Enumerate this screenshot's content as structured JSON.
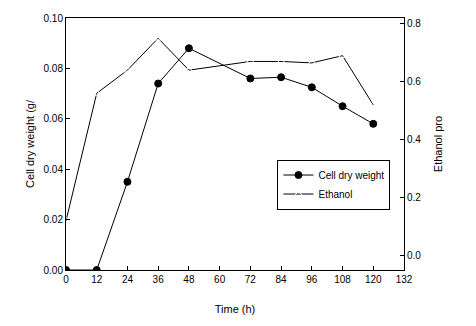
{
  "chart_data": {
    "type": "line",
    "x_label": "Time (h)",
    "y_label": "Cell dry weight (g/",
    "y2_label": "Ethanol pro",
    "x": [
      0,
      12,
      24,
      36,
      48,
      72,
      84,
      96,
      108,
      120
    ],
    "series": [
      {
        "name": "Cell dry weight",
        "color": "#000000",
        "marker": "circle",
        "line_style": "solid",
        "values": [
          0,
          0,
          0.035,
          0.074,
          0.088,
          0.076,
          0.0765,
          0.0725,
          0.065,
          0.058
        ]
      },
      {
        "name": "Ethanol",
        "color": "#000000",
        "marker": "triangle-open",
        "line_style": "solid",
        "axis": "y2",
        "values": [
          0.12,
          0.56,
          0.64,
          0.75,
          0.64,
          0.67,
          0.67,
          0.665,
          0.69,
          0.52
        ]
      }
    ],
    "xlim": [
      0,
      132
    ],
    "xticks": [
      0,
      12,
      24,
      36,
      48,
      60,
      72,
      84,
      96,
      108,
      120,
      132
    ],
    "ylim": [
      0,
      0.1
    ],
    "yticks": [
      {
        "value": 0,
        "label": "0.00"
      },
      {
        "value": 0.02,
        "label": "0.02"
      },
      {
        "value": 0.04,
        "label": "0.04"
      },
      {
        "value": 0.06,
        "label": "0.06"
      },
      {
        "value": 0.08,
        "label": "0.08"
      },
      {
        "value": 0.1,
        "label": "0.10"
      }
    ],
    "y2lim": [
      -0.05,
      0.82
    ],
    "y2ticks": [
      {
        "value": 0,
        "label": "0.0"
      },
      {
        "value": 0.2,
        "label": "0.2"
      },
      {
        "value": 0.4,
        "label": "0.4"
      },
      {
        "value": 0.6,
        "label": "0.6"
      },
      {
        "value": 0.8,
        "label": "0.8"
      }
    ],
    "grid": false,
    "legend": "lower right"
  }
}
